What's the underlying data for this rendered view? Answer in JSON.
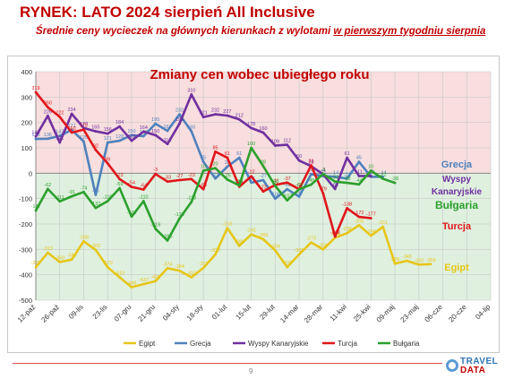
{
  "header": {
    "title": "RYNEK: LATO 2024 sierpień All Inclusive",
    "subtitle_pre": "Średnie ceny wycieczek na głównych kierunkach z wylotami ",
    "subtitle_underlined": "w pierwszym tygodniu sierpnia"
  },
  "footer": {
    "page_number": "9",
    "logo_top": "TRAVEL",
    "logo_bottom": "DATA"
  },
  "colors": {
    "Egipt": "#e6c619",
    "Grecja": "#4f81bd",
    "Wyspy Kanaryjskie": "#7030a0",
    "Turcja": "#e0161b",
    "Bułgaria": "#2ca02c",
    "bg_positive": "#f8dede",
    "bg_negative": "#dff0df",
    "title": "#c00000"
  },
  "chart_data": {
    "type": "line",
    "title": "Zmiany cen wobec ubiegłego roku",
    "ylim": [
      -500,
      400
    ],
    "yticks": [
      -500,
      -400,
      -300,
      -200,
      -100,
      0,
      100,
      200,
      300,
      400
    ],
    "x_tick_labels": [
      "12-paź",
      "26-paź",
      "09-lis",
      "23-lis",
      "07-gru",
      "21-gru",
      "04-sty",
      "18-sty",
      "01-lut",
      "15-lut",
      "29-lut",
      "14-mar",
      "28-mar",
      "11-kwi",
      "25-kwi",
      "09-maj",
      "23-maj",
      "06-cze",
      "20-cze",
      "04-lip"
    ],
    "x_count": 39,
    "grid": true,
    "legend_position": "bottom",
    "series_labels": [
      {
        "name": "Grecja",
        "text": "Grecja"
      },
      {
        "name": "Wyspy Kanaryjskie",
        "text": "Wyspy"
      },
      {
        "name": "Wyspy Kanaryjskie",
        "text": "Kanaryjskie"
      },
      {
        "name": "Bułgaria",
        "text": "Bułgaria"
      },
      {
        "name": "Turcja",
        "text": "Turcja"
      },
      {
        "name": "Egipt",
        "text": "Egipt"
      }
    ],
    "series": [
      {
        "name": "Egipt",
        "values": [
          -370,
          -313,
          -350,
          -340,
          -268,
          -302,
          -370,
          -410,
          -449,
          -437,
          -425,
          -374,
          -384,
          -410,
          -373,
          -320,
          -216,
          -286,
          -241,
          -260,
          -304,
          -370,
          -320,
          -273,
          -300,
          -254,
          -236,
          -205,
          -246,
          -211,
          -356,
          -345,
          -360,
          -358
        ]
      },
      {
        "name": "Grecja",
        "values": [
          135,
          136,
          147,
          171,
          125,
          -85,
          121,
          128,
          150,
          146,
          195,
          167,
          232,
          165,
          45,
          -21,
          26,
          61,
          -37,
          -27,
          -100,
          -63,
          -92,
          -4,
          -11,
          -14,
          -21,
          45,
          -14,
          -14
        ]
      },
      {
        "name": "Wyspy Kanaryjskie",
        "values": [
          145,
          226,
          121,
          234,
          178,
          165,
          156,
          184,
          128,
          164,
          150,
          115,
          195,
          310,
          221,
          232,
          227,
          212,
          178,
          160,
          109,
          112,
          50,
          28,
          -4,
          -62,
          61,
          -11,
          -11
        ]
      },
      {
        "name": "Turcja",
        "values": [
          319,
          260,
          222,
          160,
          172,
          92,
          39,
          -23,
          -54,
          -64,
          -3,
          -33,
          -27,
          -23,
          -63,
          85,
          61,
          -53,
          -12,
          -72,
          -46,
          -37,
          -63,
          31,
          -79,
          -249,
          -138,
          -172,
          -177
        ]
      },
      {
        "name": "Bułgaria",
        "values": [
          -147,
          -62,
          -111,
          -91,
          -74,
          -137,
          -110,
          -59,
          -171,
          -110,
          -219,
          -265,
          -179,
          -113,
          10,
          20,
          -25,
          -48,
          100,
          28,
          -50,
          -107,
          -63,
          -45,
          -3,
          -33,
          -38,
          -44,
          10,
          -22,
          -38
        ]
      }
    ],
    "data_labels": {
      "Egipt": [
        "-370",
        "-313",
        "-350",
        "-340",
        "-268",
        "-302",
        "-370",
        "-410",
        "-449",
        "-437",
        "-425",
        "-374",
        "-384",
        "-410",
        "-373",
        "-320",
        "-216",
        "-286",
        "-241",
        "-260",
        "-304",
        "-370",
        "-320",
        "-273",
        "-300",
        "-254",
        "-236",
        "-205",
        "-246",
        "-211",
        "-356",
        "-345",
        "-360",
        "-358"
      ],
      "Grecja": [
        "135",
        "136",
        "147",
        "171",
        "125",
        "-85",
        "121",
        "128",
        "150",
        "146",
        "195",
        "167",
        "232",
        "165",
        "45",
        "-21",
        "26",
        "61",
        "-37",
        "-27",
        "-100",
        "-63",
        "-92",
        "-4",
        "-11",
        "-14",
        "-21",
        "45",
        "-14",
        "-14"
      ],
      "Wyspy Kanaryjskie": [
        "145",
        "226",
        "121",
        "234",
        "178",
        "165",
        "156",
        "184",
        "128",
        "164",
        "150",
        "115",
        "195",
        "310",
        "221",
        "232",
        "227",
        "212",
        "178",
        "160",
        "109",
        "112",
        "50",
        "28",
        "-4",
        "-62",
        "61",
        "-11",
        "-11"
      ],
      "Turcja": [
        "319",
        "260",
        "222",
        "160",
        "172",
        "92",
        "39",
        "-23",
        "-54",
        "-64",
        "-3",
        "-33",
        "-27",
        "-23",
        "-63",
        "85",
        "61",
        "-53",
        "-12",
        "-72",
        "-46",
        "-37",
        "-63",
        "31",
        "-79",
        "-249",
        "-138",
        "-172",
        "-177"
      ],
      "Bułgaria": [
        "-147",
        "-62",
        "-111",
        "-91",
        "-74",
        "-137",
        "-110",
        "-59",
        "-171",
        "-110",
        "-219",
        "-265",
        "-179",
        "-113",
        "10",
        "20",
        "-25",
        "-48",
        "100",
        "28",
        "-50",
        "-107",
        "-63",
        "-45",
        "-3",
        "-33",
        "-38",
        "-44",
        "10",
        "-22",
        "-38"
      ]
    }
  }
}
